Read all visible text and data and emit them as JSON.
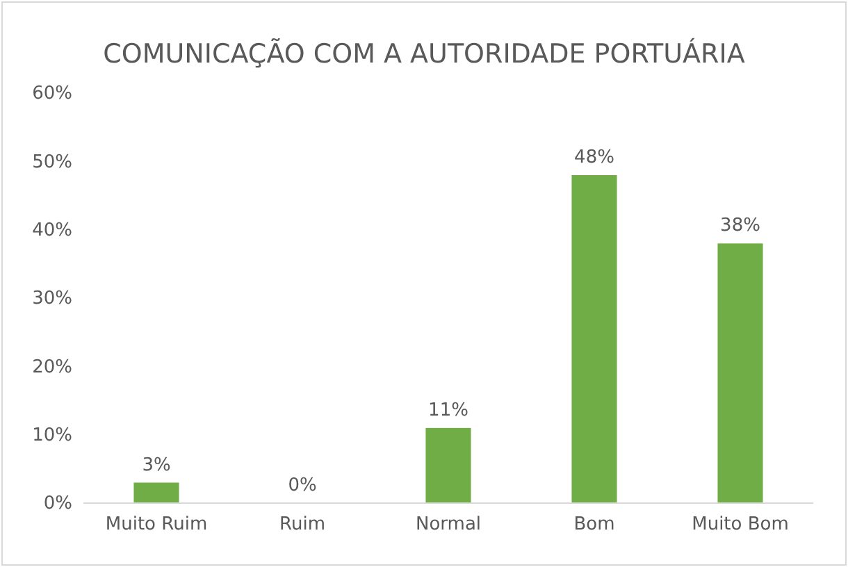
{
  "chart_data": {
    "type": "bar",
    "title": "COMUNICAÇÃO COM A AUTORIDADE PORTUÁRIA",
    "categories": [
      "Muito Ruim",
      "Ruim",
      "Normal",
      "Bom",
      "Muito Bom"
    ],
    "values": [
      3,
      0,
      11,
      48,
      38
    ],
    "color": "#70ad47",
    "value_labels": [
      "3%",
      "0%",
      "11%",
      "48%",
      "38%"
    ],
    "ylim": [
      0,
      60
    ],
    "yticks": [
      {
        "value": 0,
        "label": "0%"
      },
      {
        "value": 10,
        "label": "10%"
      },
      {
        "value": 20,
        "label": "20%"
      },
      {
        "value": 30,
        "label": "30%"
      },
      {
        "value": 40,
        "label": "40%"
      },
      {
        "value": 50,
        "label": "50%"
      },
      {
        "value": 60,
        "label": "60%"
      }
    ],
    "grid": false
  }
}
